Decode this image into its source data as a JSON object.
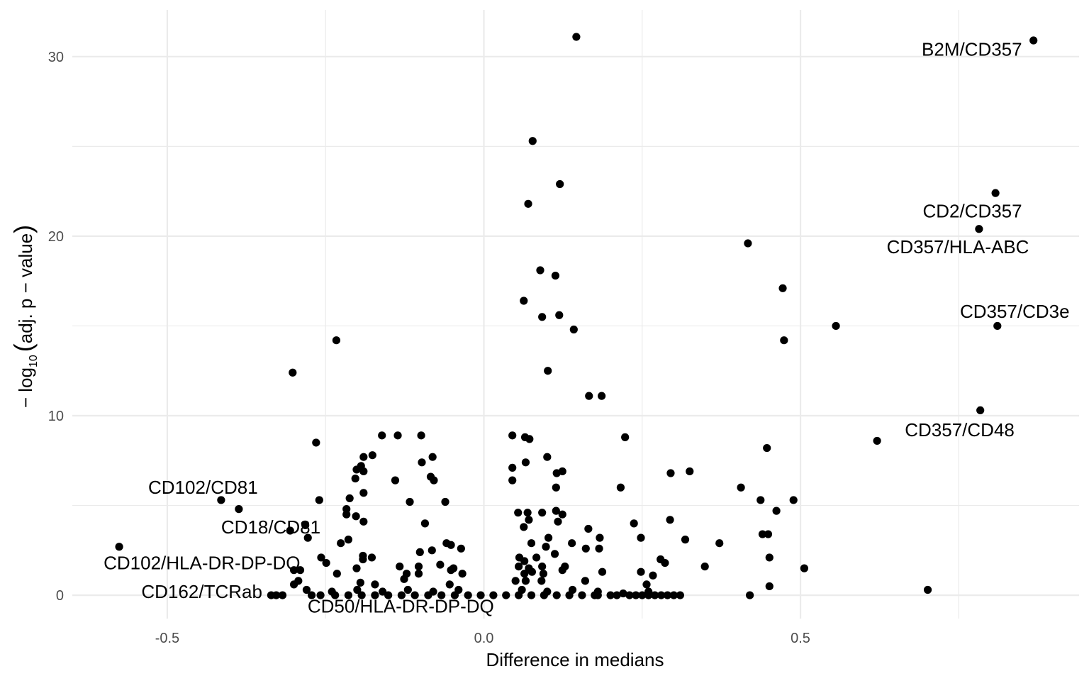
{
  "chart_data": {
    "type": "scatter",
    "xlabel": "Difference in medians",
    "ylabel": {
      "prefix": "− log",
      "subscript": "10",
      "paren_open": "(",
      "inner": "adj. p − value",
      "paren_close": ")"
    },
    "xlim": [
      -0.65,
      0.94
    ],
    "ylim": [
      -1.3,
      32.6
    ],
    "x_ticks": [
      {
        "value": -0.5,
        "label": "-0.5"
      },
      {
        "value": 0.0,
        "label": "0.0"
      },
      {
        "value": 0.5,
        "label": "0.5"
      }
    ],
    "y_ticks": [
      {
        "value": 0,
        "label": "0"
      },
      {
        "value": 10,
        "label": "10"
      },
      {
        "value": 20,
        "label": "20"
      },
      {
        "value": 30,
        "label": "30"
      }
    ],
    "grid": true,
    "point_color": "#000000",
    "grid_color": "#ebebeb",
    "points": [
      [
        0.146,
        31.1
      ],
      [
        0.868,
        30.9
      ],
      [
        0.077,
        25.3
      ],
      [
        0.12,
        22.9
      ],
      [
        0.07,
        21.8
      ],
      [
        0.808,
        22.4
      ],
      [
        0.782,
        20.4
      ],
      [
        0.417,
        19.6
      ],
      [
        0.089,
        18.1
      ],
      [
        0.113,
        17.8
      ],
      [
        0.472,
        17.1
      ],
      [
        0.063,
        16.4
      ],
      [
        0.092,
        15.5
      ],
      [
        0.119,
        15.6
      ],
      [
        0.142,
        14.8
      ],
      [
        0.556,
        15.0
      ],
      [
        0.811,
        15.0
      ],
      [
        0.474,
        14.2
      ],
      [
        -0.233,
        14.2
      ],
      [
        -0.302,
        12.4
      ],
      [
        0.101,
        12.5
      ],
      [
        0.166,
        11.1
      ],
      [
        0.186,
        11.1
      ],
      [
        0.784,
        10.3
      ],
      [
        0.621,
        8.6
      ],
      [
        0.447,
        8.2
      ],
      [
        -0.265,
        8.5
      ],
      [
        -0.161,
        8.9
      ],
      [
        -0.136,
        8.9
      ],
      [
        -0.099,
        8.9
      ],
      [
        0.045,
        8.9
      ],
      [
        0.065,
        8.8
      ],
      [
        0.072,
        8.7
      ],
      [
        0.223,
        8.8
      ],
      [
        -0.176,
        7.8
      ],
      [
        -0.19,
        7.7
      ],
      [
        -0.081,
        7.7
      ],
      [
        0.066,
        7.4
      ],
      [
        0.1,
        7.7
      ],
      [
        -0.098,
        7.4
      ],
      [
        0.045,
        7.1
      ],
      [
        -0.194,
        7.2
      ],
      [
        -0.201,
        7.0
      ],
      [
        -0.19,
        6.9
      ],
      [
        0.124,
        6.9
      ],
      [
        0.115,
        6.8
      ],
      [
        0.295,
        6.8
      ],
      [
        0.325,
        6.9
      ],
      [
        -0.084,
        6.6
      ],
      [
        -0.079,
        6.4
      ],
      [
        -0.203,
        6.5
      ],
      [
        -0.14,
        6.4
      ],
      [
        0.045,
        6.4
      ],
      [
        0.216,
        6.0
      ],
      [
        0.406,
        6.0
      ],
      [
        0.114,
        6.0
      ],
      [
        -0.19,
        5.7
      ],
      [
        -0.212,
        5.4
      ],
      [
        -0.26,
        5.3
      ],
      [
        -0.415,
        5.3
      ],
      [
        -0.387,
        4.8
      ],
      [
        -0.117,
        5.2
      ],
      [
        -0.061,
        5.2
      ],
      [
        0.437,
        5.3
      ],
      [
        0.489,
        5.3
      ],
      [
        -0.217,
        4.8
      ],
      [
        -0.202,
        4.4
      ],
      [
        -0.217,
        4.5
      ],
      [
        0.054,
        4.6
      ],
      [
        0.069,
        4.6
      ],
      [
        0.092,
        4.6
      ],
      [
        0.114,
        4.7
      ],
      [
        0.124,
        4.5
      ],
      [
        0.462,
        4.7
      ],
      [
        -0.19,
        4.1
      ],
      [
        0.071,
        4.2
      ],
      [
        0.117,
        4.1
      ],
      [
        0.237,
        4.0
      ],
      [
        0.294,
        4.2
      ],
      [
        -0.282,
        3.9
      ],
      [
        -0.093,
        4.0
      ],
      [
        0.063,
        3.8
      ],
      [
        0.165,
        3.7
      ],
      [
        0.449,
        3.4
      ],
      [
        0.44,
        3.4
      ],
      [
        -0.306,
        3.6
      ],
      [
        -0.278,
        3.2
      ],
      [
        -0.214,
        3.1
      ],
      [
        -0.226,
        2.9
      ],
      [
        0.102,
        3.2
      ],
      [
        0.183,
        3.2
      ],
      [
        0.248,
        3.2
      ],
      [
        0.318,
        3.1
      ],
      [
        -0.059,
        2.9
      ],
      [
        -0.052,
        2.8
      ],
      [
        -0.036,
        2.6
      ],
      [
        0.075,
        2.9
      ],
      [
        0.098,
        2.7
      ],
      [
        0.139,
        2.9
      ],
      [
        0.161,
        2.6
      ],
      [
        0.182,
        2.6
      ],
      [
        0.372,
        2.9
      ],
      [
        -0.576,
        2.7
      ],
      [
        -0.101,
        2.4
      ],
      [
        -0.082,
        2.5
      ],
      [
        0.112,
        2.3
      ],
      [
        -0.177,
        2.1
      ],
      [
        -0.191,
        2.2
      ],
      [
        -0.191,
        2.0
      ],
      [
        -0.257,
        2.1
      ],
      [
        -0.249,
        1.8
      ],
      [
        0.056,
        2.1
      ],
      [
        0.064,
        1.9
      ],
      [
        0.083,
        2.1
      ],
      [
        0.279,
        2.0
      ],
      [
        0.286,
        1.8
      ],
      [
        0.451,
        2.1
      ],
      [
        -0.133,
        1.6
      ],
      [
        -0.103,
        1.6
      ],
      [
        -0.069,
        1.7
      ],
      [
        -0.048,
        1.5
      ],
      [
        0.055,
        1.6
      ],
      [
        0.071,
        1.5
      ],
      [
        0.092,
        1.6
      ],
      [
        0.128,
        1.6
      ],
      [
        -0.3,
        1.4
      ],
      [
        -0.29,
        1.4
      ],
      [
        -0.201,
        1.5
      ],
      [
        -0.232,
        1.2
      ],
      [
        0.064,
        1.2
      ],
      [
        0.076,
        1.3
      ],
      [
        0.094,
        1.2
      ],
      [
        0.124,
        1.4
      ],
      [
        0.187,
        1.3
      ],
      [
        0.248,
        1.3
      ],
      [
        0.267,
        1.1
      ],
      [
        0.349,
        1.6
      ],
      [
        0.506,
        1.5
      ],
      [
        -0.103,
        1.2
      ],
      [
        -0.122,
        1.2
      ],
      [
        -0.052,
        1.4
      ],
      [
        -0.034,
        1.2
      ],
      [
        0.05,
        0.8
      ],
      [
        0.066,
        0.8
      ],
      [
        0.091,
        0.8
      ],
      [
        0.16,
        0.8
      ],
      [
        -0.3,
        0.6
      ],
      [
        -0.293,
        0.8
      ],
      [
        -0.195,
        0.7
      ],
      [
        -0.172,
        0.6
      ],
      [
        -0.126,
        0.9
      ],
      [
        -0.054,
        0.6
      ],
      [
        0.257,
        0.6
      ],
      [
        0.451,
        0.5
      ],
      [
        0.701,
        0.3
      ],
      [
        0.42,
        0.0
      ],
      [
        -0.336,
        0.0
      ],
      [
        -0.328,
        0.0
      ],
      [
        -0.318,
        0.0
      ],
      [
        -0.272,
        0.0
      ],
      [
        -0.258,
        0.0
      ],
      [
        -0.235,
        0.0
      ],
      [
        -0.214,
        0.0
      ],
      [
        -0.193,
        0.0
      ],
      [
        -0.172,
        0.0
      ],
      [
        -0.151,
        0.0
      ],
      [
        -0.13,
        0.0
      ],
      [
        -0.109,
        0.0
      ],
      [
        -0.088,
        0.0
      ],
      [
        -0.067,
        0.0
      ],
      [
        -0.046,
        0.0
      ],
      [
        -0.025,
        0.0
      ],
      [
        -0.005,
        0.0
      ],
      [
        0.015,
        0.0
      ],
      [
        0.035,
        0.0
      ],
      [
        0.055,
        0.0
      ],
      [
        0.075,
        0.0
      ],
      [
        0.095,
        0.0
      ],
      [
        0.115,
        0.0
      ],
      [
        0.135,
        0.0
      ],
      [
        0.155,
        0.0
      ],
      [
        0.175,
        0.0
      ],
      [
        0.21,
        0.0
      ],
      [
        0.23,
        0.0
      ],
      [
        0.25,
        0.0
      ],
      [
        0.27,
        0.0
      ],
      [
        0.29,
        0.0
      ],
      [
        0.31,
        0.0
      ],
      [
        0.18,
        0.0
      ],
      [
        0.2,
        0.0
      ],
      [
        0.24,
        0.0
      ],
      [
        0.26,
        0.0
      ],
      [
        0.28,
        0.0
      ],
      [
        0.3,
        0.0
      ],
      [
        -0.28,
        0.3
      ],
      [
        -0.24,
        0.2
      ],
      [
        -0.2,
        0.3
      ],
      [
        -0.16,
        0.2
      ],
      [
        -0.12,
        0.3
      ],
      [
        -0.08,
        0.2
      ],
      [
        -0.04,
        0.3
      ],
      [
        0.06,
        0.3
      ],
      [
        0.1,
        0.2
      ],
      [
        0.14,
        0.3
      ],
      [
        0.18,
        0.2
      ],
      [
        0.22,
        0.1
      ],
      [
        0.26,
        0.2
      ]
    ],
    "annotations": [
      {
        "text": "B2M/CD357",
        "x": 0.85,
        "y": 30.4,
        "anchor": "end"
      },
      {
        "text": "CD2/CD357",
        "x": 0.85,
        "y": 21.4,
        "anchor": "end"
      },
      {
        "text": "CD357/HLA-ABC",
        "x": 0.861,
        "y": 19.4,
        "anchor": "end"
      },
      {
        "text": "CD357/CD3e",
        "x": 0.925,
        "y": 15.8,
        "anchor": "end"
      },
      {
        "text": "CD357/CD48",
        "x": 0.838,
        "y": 9.2,
        "anchor": "end"
      },
      {
        "text": "CD102/CD81",
        "x": -0.357,
        "y": 6.0,
        "anchor": "end"
      },
      {
        "text": "CD18/CD81",
        "x": -0.258,
        "y": 3.8,
        "anchor": "end"
      },
      {
        "text": "CD102/HLA-DR-DP-DQ",
        "x": -0.29,
        "y": 1.8,
        "anchor": "end"
      },
      {
        "text": "CD162/TCRab",
        "x": -0.35,
        "y": 0.2,
        "anchor": "end"
      },
      {
        "text": "CD50/HLA-DR-DP-DQ",
        "x": 0.016,
        "y": -0.6,
        "anchor": "end"
      }
    ]
  }
}
